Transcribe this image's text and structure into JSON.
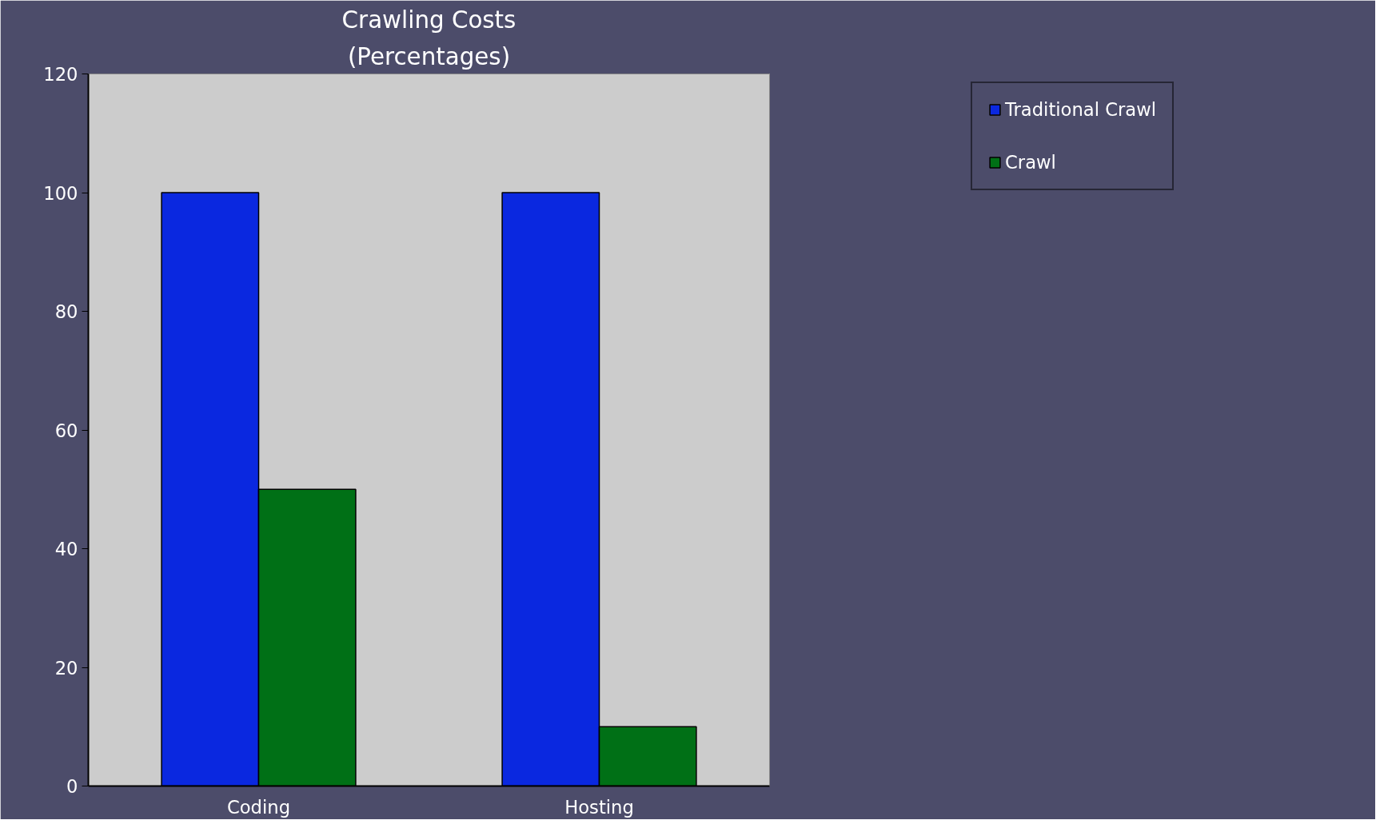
{
  "chart_data": {
    "type": "bar",
    "title": "Crawling Costs",
    "subtitle": "(Percentages)",
    "categories": [
      "Coding",
      "Hosting"
    ],
    "series": [
      {
        "name": "Traditional Crawl",
        "color": "#0a28e0",
        "values": [
          100,
          100
        ]
      },
      {
        "name": "Crawl",
        "color": "#007016",
        "values": [
          50,
          10
        ]
      }
    ],
    "ylim": [
      0,
      120
    ],
    "yticks": [
      0,
      20,
      40,
      60,
      80,
      100,
      120
    ],
    "grid": false,
    "legend": "right"
  }
}
